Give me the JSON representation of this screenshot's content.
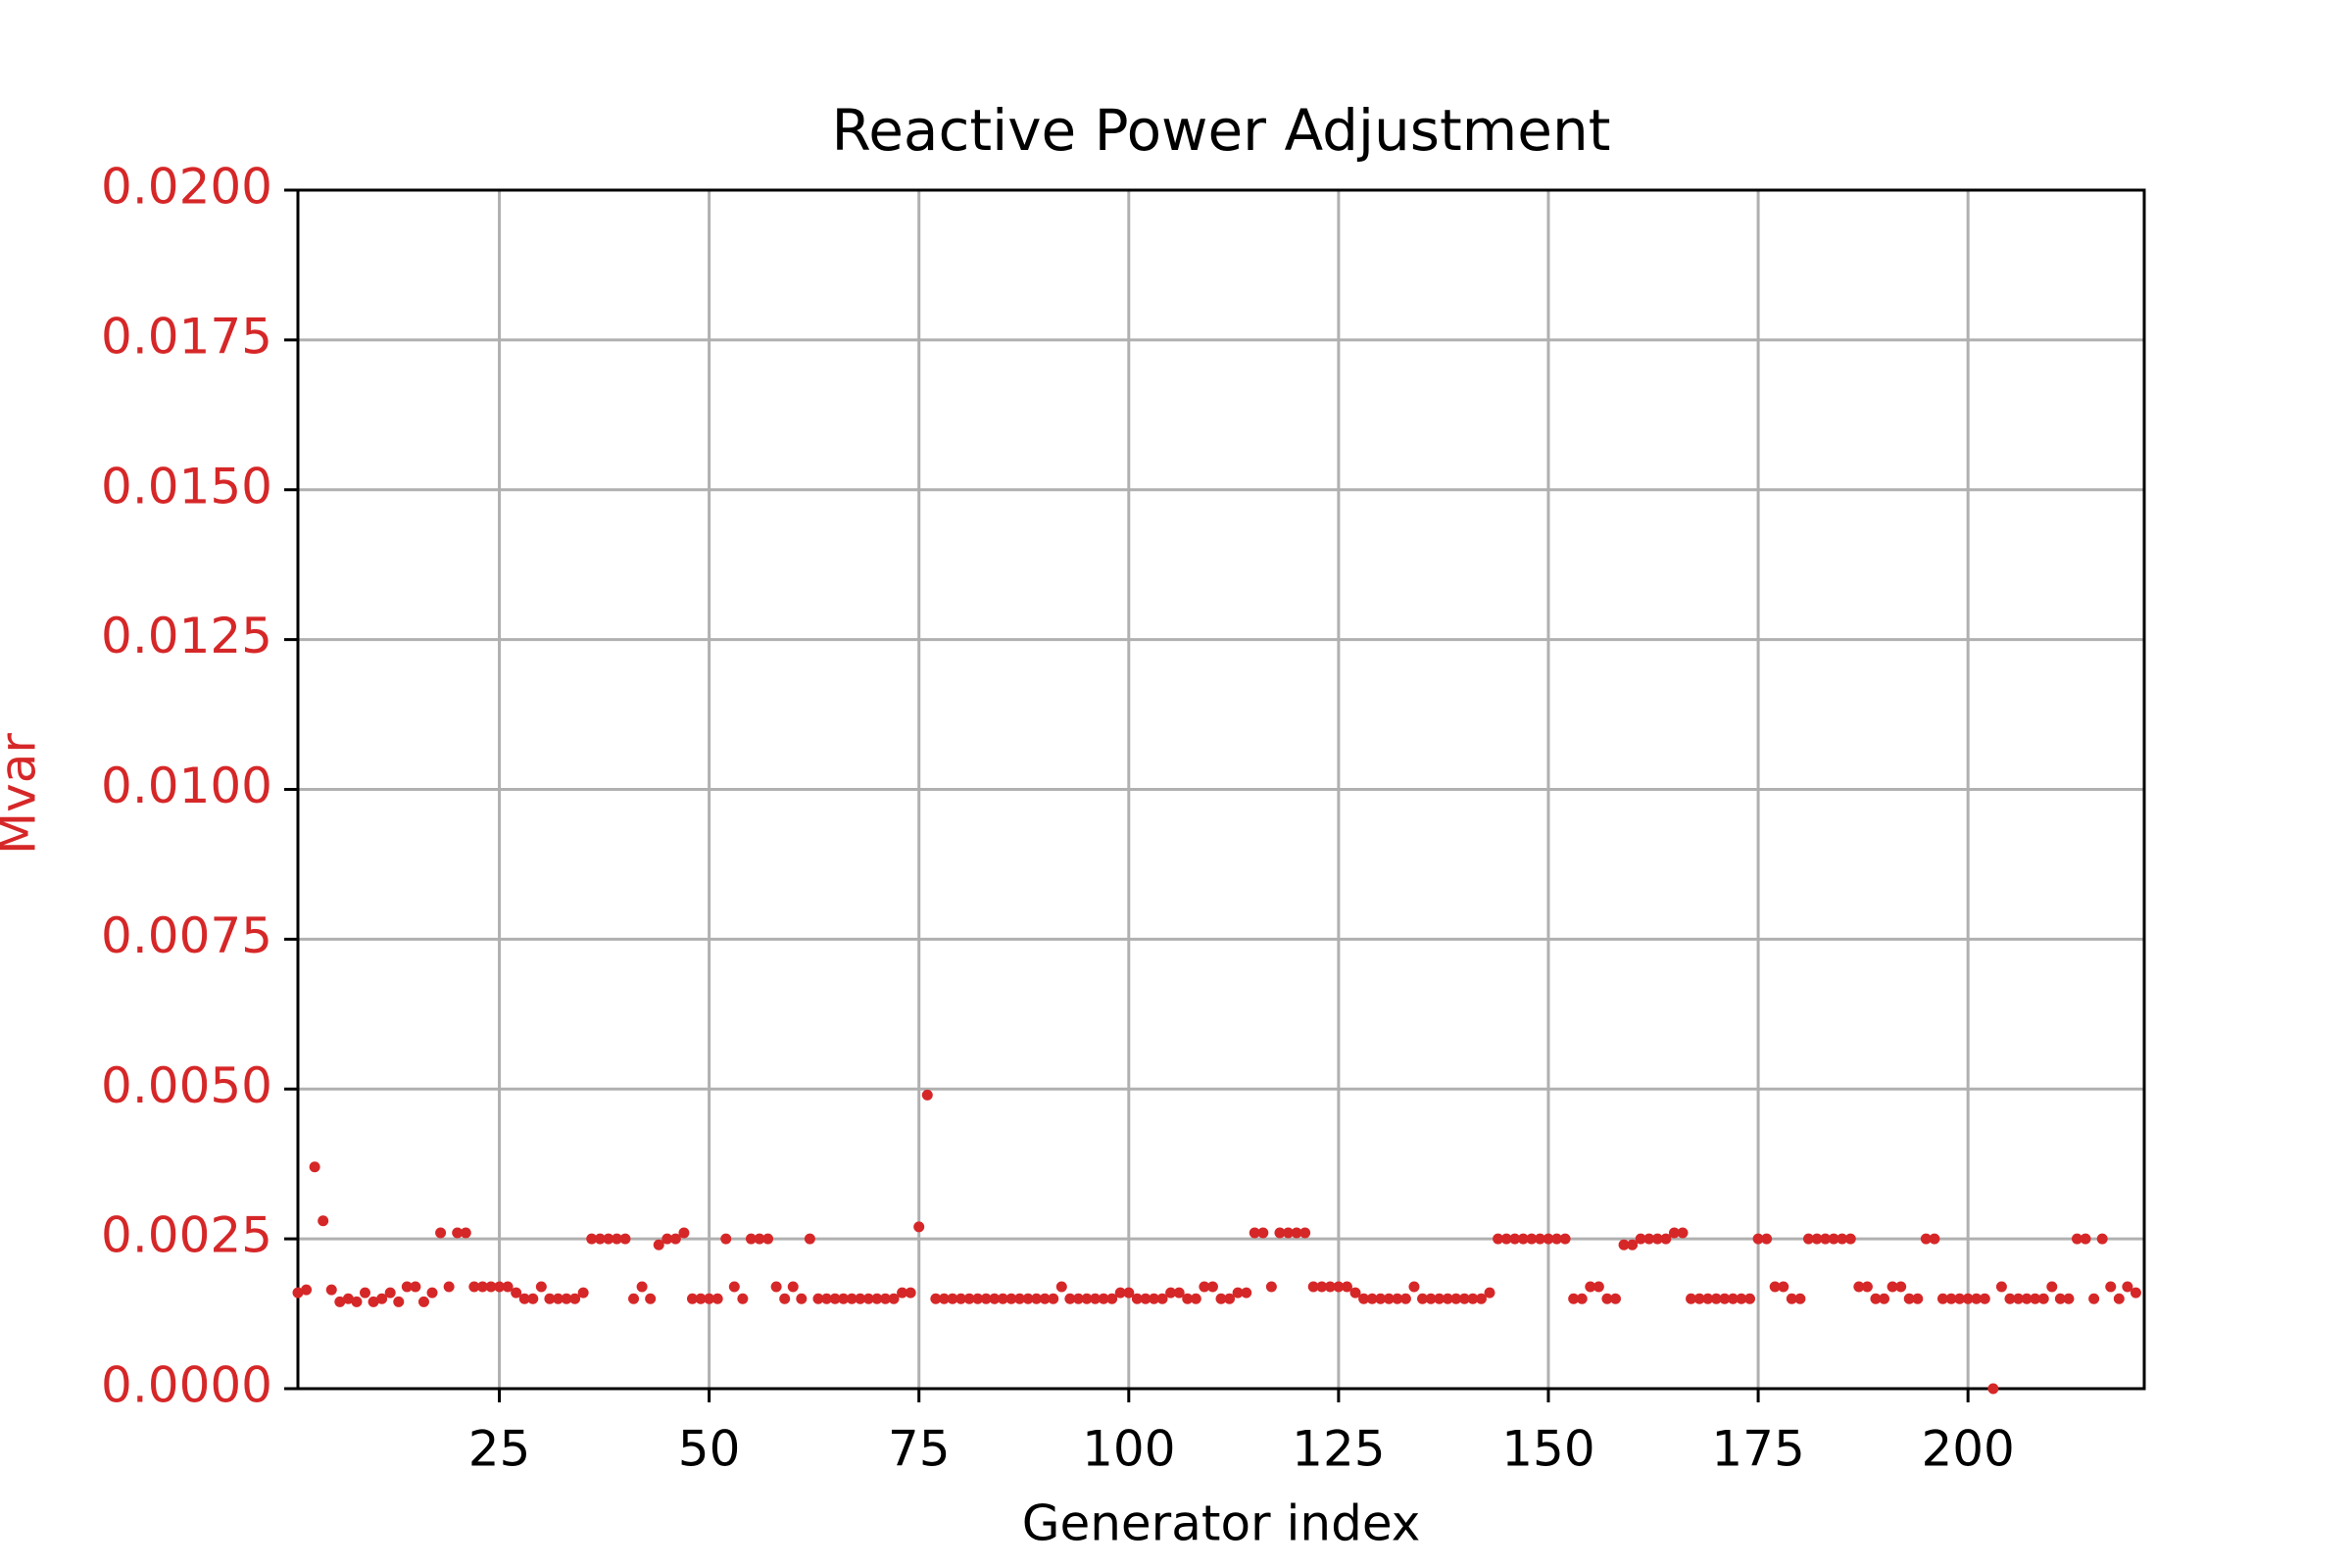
{
  "chart_data": {
    "type": "scatter",
    "title": "Reactive Power Adjustment",
    "xlabel": "Generator index",
    "ylabel": "Mvar",
    "color": "#d62728",
    "grid": true,
    "x": [
      1,
      2,
      3,
      4,
      5,
      6,
      7,
      8,
      9,
      10,
      11,
      12,
      13,
      14,
      15,
      16,
      17,
      18,
      19,
      20,
      21,
      22,
      23,
      24,
      25,
      26,
      27,
      28,
      29,
      30,
      31,
      32,
      33,
      34,
      35,
      36,
      37,
      38,
      39,
      40,
      41,
      42,
      43,
      44,
      45,
      46,
      47,
      48,
      49,
      50,
      51,
      52,
      53,
      54,
      55,
      56,
      57,
      58,
      59,
      60,
      61,
      62,
      63,
      64,
      65,
      66,
      67,
      68,
      69,
      70,
      71,
      72,
      73,
      74,
      75,
      76,
      77,
      78,
      79,
      80,
      81,
      82,
      83,
      84,
      85,
      86,
      87,
      88,
      89,
      90,
      91,
      92,
      93,
      94,
      95,
      96,
      97,
      98,
      99,
      100,
      101,
      102,
      103,
      104,
      105,
      106,
      107,
      108,
      109,
      110,
      111,
      112,
      113,
      114,
      115,
      116,
      117,
      118,
      119,
      120,
      121,
      122,
      123,
      124,
      125,
      126,
      127,
      128,
      129,
      130,
      131,
      132,
      133,
      134,
      135,
      136,
      137,
      138,
      139,
      140,
      141,
      142,
      143,
      144,
      145,
      146,
      147,
      148,
      149,
      150,
      151,
      152,
      153,
      154,
      155,
      156,
      157,
      158,
      159,
      160,
      161,
      162,
      163,
      164,
      165,
      166,
      167,
      168,
      169,
      170,
      171,
      172,
      173,
      174,
      175,
      176,
      177,
      178,
      179,
      180,
      181,
      182,
      183,
      184,
      185,
      186,
      187,
      188,
      189,
      190,
      191,
      192,
      193,
      194,
      195,
      196,
      197,
      198,
      199,
      200,
      201,
      202,
      203,
      204,
      205,
      206,
      207,
      208,
      209,
      210,
      211,
      212,
      213,
      214,
      215,
      216,
      217,
      218,
      219,
      220
    ],
    "values": [
      0.0016,
      0.00165,
      0.0037,
      0.0028,
      0.00165,
      0.00145,
      0.0015,
      0.00145,
      0.0016,
      0.00145,
      0.0015,
      0.0016,
      0.00145,
      0.0017,
      0.0017,
      0.00145,
      0.0016,
      0.0026,
      0.0017,
      0.0026,
      0.0026,
      0.0017,
      0.0017,
      0.0017,
      0.0017,
      0.0017,
      0.0016,
      0.0015,
      0.0015,
      0.0017,
      0.0015,
      0.0015,
      0.0015,
      0.0015,
      0.0016,
      0.0025,
      0.0025,
      0.0025,
      0.0025,
      0.0025,
      0.0015,
      0.0017,
      0.0015,
      0.0024,
      0.0025,
      0.0025,
      0.0026,
      0.0015,
      0.0015,
      0.0015,
      0.0015,
      0.0025,
      0.0017,
      0.0015,
      0.0025,
      0.0025,
      0.0025,
      0.0017,
      0.0015,
      0.0017,
      0.0015,
      0.0025,
      0.0015,
      0.0015,
      0.0015,
      0.0015,
      0.0015,
      0.0015,
      0.0015,
      0.0015,
      0.0015,
      0.0015,
      0.0016,
      0.0016,
      0.0027,
      0.0049,
      0.0015,
      0.0015,
      0.0015,
      0.0015,
      0.0015,
      0.0015,
      0.0015,
      0.0015,
      0.0015,
      0.0015,
      0.0015,
      0.0015,
      0.0015,
      0.0015,
      0.0015,
      0.0017,
      0.0015,
      0.0015,
      0.0015,
      0.0015,
      0.0015,
      0.0015,
      0.0016,
      0.0016,
      0.0015,
      0.0015,
      0.0015,
      0.0015,
      0.0016,
      0.0016,
      0.0015,
      0.0015,
      0.0017,
      0.0017,
      0.0015,
      0.0015,
      0.0016,
      0.0016,
      0.0026,
      0.0026,
      0.0017,
      0.0026,
      0.0026,
      0.0026,
      0.0026,
      0.0017,
      0.0017,
      0.0017,
      0.0017,
      0.0017,
      0.0016,
      0.0015,
      0.0015,
      0.0015,
      0.0015,
      0.0015,
      0.0015,
      0.0017,
      0.0015,
      0.0015,
      0.0015,
      0.0015,
      0.0015,
      0.0015,
      0.0015,
      0.0015,
      0.0016,
      0.0025,
      0.0025,
      0.0025,
      0.0025,
      0.0025,
      0.0025,
      0.0025,
      0.0025,
      0.0025,
      0.0015,
      0.0015,
      0.0017,
      0.0017,
      0.0015,
      0.0015,
      0.0024,
      0.0024,
      0.0025,
      0.0025,
      0.0025,
      0.0025,
      0.0026,
      0.0026,
      0.0015,
      0.0015,
      0.0015,
      0.0015,
      0.0015,
      0.0015,
      0.0015,
      0.0015,
      0.0025,
      0.0025,
      0.0017,
      0.0017,
      0.0015,
      0.0015,
      0.0025,
      0.0025,
      0.0025,
      0.0025,
      0.0025,
      0.0025,
      0.0017,
      0.0017,
      0.0015,
      0.0015,
      0.0017,
      0.0017,
      0.0015,
      0.0015,
      0.0025,
      0.0025,
      0.0015,
      0.0015,
      0.0015,
      0.0015,
      0.0015,
      0.0015,
      0,
      0.0017,
      0.0015,
      0.0015,
      0.0015,
      0.0015,
      0.0015,
      0.0017,
      0.0015,
      0.0015,
      0.0025,
      0.0025,
      0.0015,
      0.0025,
      0.0017,
      0.0015,
      0.0017,
      0.0016
    ],
    "xlim": [
      1,
      221
    ],
    "xticks": [
      25,
      50,
      75,
      100,
      125,
      150,
      175,
      200
    ],
    "ylim": [
      0,
      0.02
    ],
    "yticks": [
      {
        "value": 0,
        "label": "0.0000"
      },
      {
        "value": 0.0025,
        "label": "0.0025"
      },
      {
        "value": 0.005,
        "label": "0.0050"
      },
      {
        "value": 0.0075,
        "label": "0.0075"
      },
      {
        "value": 0.01,
        "label": "0.0100"
      },
      {
        "value": 0.0125,
        "label": "0.0125"
      },
      {
        "value": 0.015,
        "label": "0.0150"
      },
      {
        "value": 0.0175,
        "label": "0.0175"
      },
      {
        "value": 0.02,
        "label": "0.0200"
      }
    ]
  }
}
